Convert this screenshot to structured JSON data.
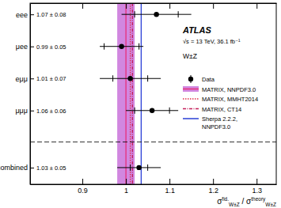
{
  "chart_data": {
    "type": "errorbar",
    "orientation": "horizontal",
    "categories": [
      "eee",
      "μee",
      "eμμ",
      "μμμ",
      "combined"
    ],
    "values": [
      1.07,
      0.99,
      1.01,
      1.06,
      1.03
    ],
    "errors": [
      0.08,
      0.05,
      0.07,
      0.06,
      0.05
    ],
    "stat_errors": [
      0.05,
      0.04,
      0.04,
      0.04,
      0.02
    ],
    "value_labels": [
      "1.07 ± 0.08",
      "0.99 ± 0.05",
      "1.01 ± 0.07",
      "1.06 ± 0.06",
      "1.03 ± 0.05"
    ],
    "name": "Data",
    "color": "#000000",
    "marker": "circle",
    "series": [
      {
        "name": "MATRIX, NNPDF3.0",
        "type": "band",
        "color": "#c25fd6",
        "line_style": "solid",
        "value": 1.0,
        "band": [
          0.98,
          1.02
        ]
      },
      {
        "name": "MATRIX, MMHT2014",
        "type": "line",
        "color": "#e0304a",
        "line_style": "dotted",
        "value": 1.01
      },
      {
        "name": "MATRIX, CT14",
        "type": "line",
        "color": "#c41e5a",
        "line_style": "dashdot",
        "value": 1.015
      },
      {
        "name": "Sherpa 2.2.2, NNPDF3.0",
        "type": "line",
        "color": "#2a3fd6",
        "line_style": "solid",
        "value": 1.035
      }
    ],
    "xlabel": [
      "σ",
      "fid.",
      "W±Z",
      " / ",
      "σ",
      "theory",
      "W±Z"
    ],
    "annotations": [
      "ATLAS",
      "√s = 13 TeV, 36.1 fb⁻¹",
      "W±Z"
    ],
    "xlim": [
      0.78,
      1.345
    ],
    "xticks": [
      0.9,
      1,
      1.1,
      1.2,
      1.3
    ],
    "legend": "upper right"
  }
}
